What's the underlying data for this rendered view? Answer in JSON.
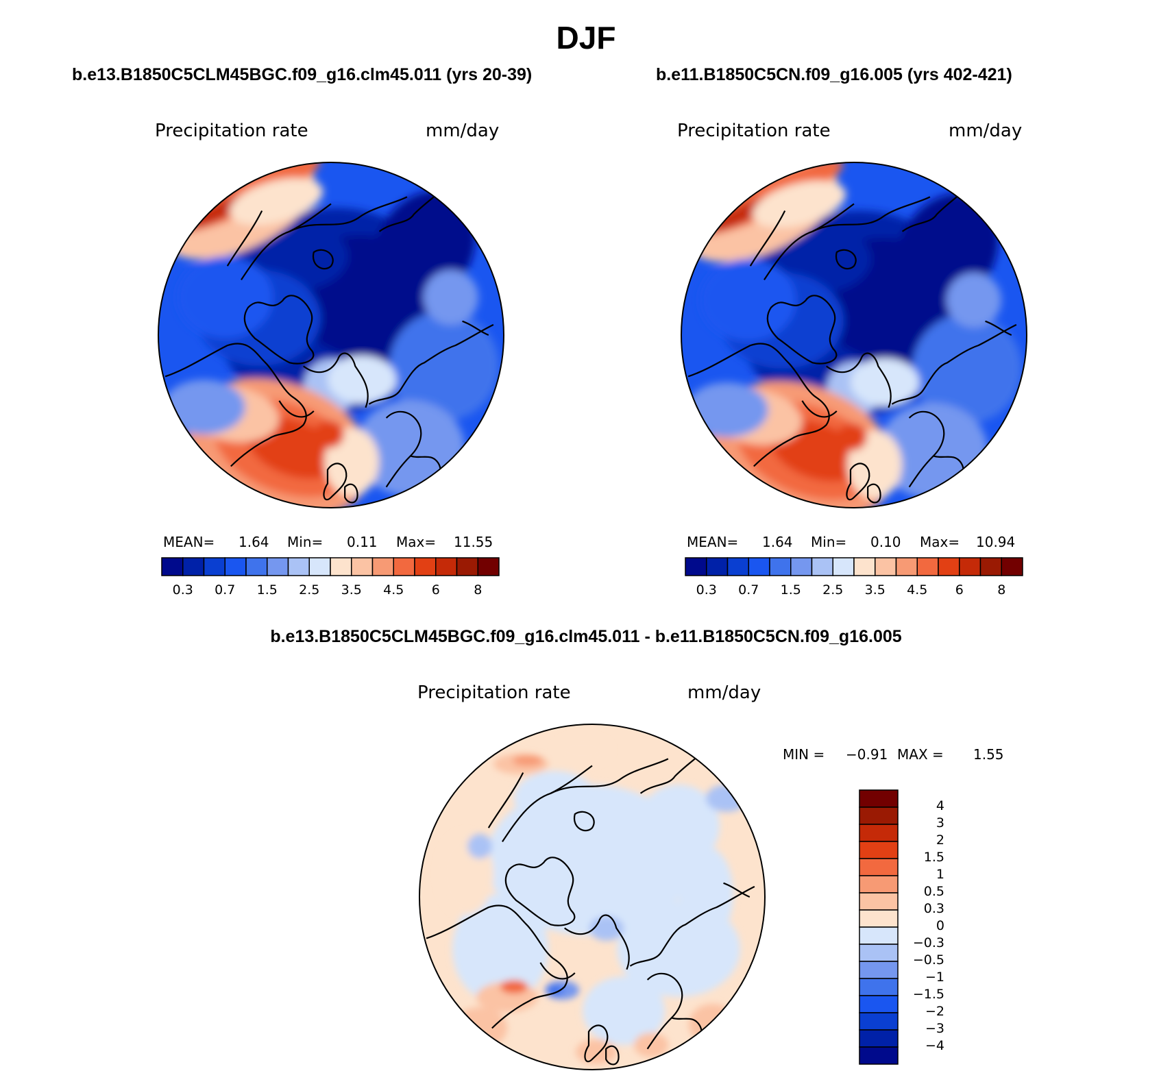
{
  "page": {
    "season": "DJF",
    "case1_title": "b.e13.B1850C5CLM45BGC.f09_g16.clm45.011 (yrs 20-39)",
    "case2_title": "b.e11.B1850C5CN.f09_g16.005 (yrs 402-421)",
    "diff_title": "b.e13.B1850C5CLM45BGC.f09_g16.clm45.011 - b.e11.B1850C5CN.f09_g16.005"
  },
  "panels": {
    "left": {
      "variable": "Precipitation rate",
      "units": "mm/day",
      "mean_label": "MEAN=",
      "mean_value": "1.64",
      "min_label": "Min=",
      "min_value": "0.11",
      "max_label": "Max=",
      "max_value": "11.55"
    },
    "right": {
      "variable": "Precipitation rate",
      "units": "mm/day",
      "mean_label": "MEAN=",
      "mean_value": "1.64",
      "min_label": "Min=",
      "min_value": "0.10",
      "max_label": "Max=",
      "max_value": "10.94"
    },
    "diff": {
      "variable": "Precipitation rate",
      "units": "mm/day",
      "min_label": "MIN =",
      "min_value": "−0.91",
      "max_label": "MAX =",
      "max_value": "1.55"
    }
  },
  "chart_data": [
    {
      "type": "heatmap",
      "projection": "north-polar-stereographic",
      "title": "b.e13.B1850C5CLM45BGC.f09_g16.clm45.011 (yrs 20-39)",
      "variable": "Precipitation rate",
      "units": "mm/day",
      "mean": 1.64,
      "min": 0.11,
      "max": 11.55,
      "colorbar_ticks": [
        "0.3",
        "0.7",
        "1.5",
        "2.5",
        "3.5",
        "4.5",
        "6",
        "8"
      ],
      "colorbar_colors": [
        "#000a8c",
        "#0021a8",
        "#0a3fd1",
        "#1a56f0",
        "#3f73ec",
        "#7597ef",
        "#aac2f5",
        "#d7e6fb",
        "#fde3cd",
        "#fbc3a4",
        "#f79a74",
        "#f2693f",
        "#e24014",
        "#c52a08",
        "#9a1a03",
        "#720000"
      ]
    },
    {
      "type": "heatmap",
      "projection": "north-polar-stereographic",
      "title": "b.e11.B1850C5CN.f09_g16.005 (yrs 402-421)",
      "variable": "Precipitation rate",
      "units": "mm/day",
      "mean": 1.64,
      "min": 0.1,
      "max": 10.94,
      "colorbar_ticks": [
        "0.3",
        "0.7",
        "1.5",
        "2.5",
        "3.5",
        "4.5",
        "6",
        "8"
      ],
      "colorbar_colors": [
        "#000a8c",
        "#0021a8",
        "#0a3fd1",
        "#1a56f0",
        "#3f73ec",
        "#7597ef",
        "#aac2f5",
        "#d7e6fb",
        "#fde3cd",
        "#fbc3a4",
        "#f79a74",
        "#f2693f",
        "#e24014",
        "#c52a08",
        "#9a1a03",
        "#720000"
      ]
    },
    {
      "type": "heatmap",
      "projection": "north-polar-stereographic",
      "title": "b.e13.B1850C5CLM45BGC.f09_g16.clm45.011 - b.e11.B1850C5CN.f09_g16.005",
      "variable": "Precipitation rate",
      "units": "mm/day",
      "min": -0.91,
      "max": 1.55,
      "colorbar_ticks": [
        "4",
        "3",
        "2",
        "1.5",
        "1",
        "0.5",
        "0.3",
        "0",
        "−0.3",
        "−0.5",
        "−1",
        "−1.5",
        "−2",
        "−3",
        "−4"
      ],
      "colorbar_colors": [
        "#720000",
        "#9a1a03",
        "#c52a08",
        "#e24014",
        "#f2693f",
        "#f79a74",
        "#fbc3a4",
        "#fde3cd",
        "#d7e6fb",
        "#aac2f5",
        "#7597ef",
        "#3f73ec",
        "#1a56f0",
        "#0a3fd1",
        "#0021a8",
        "#000a8c"
      ]
    }
  ]
}
